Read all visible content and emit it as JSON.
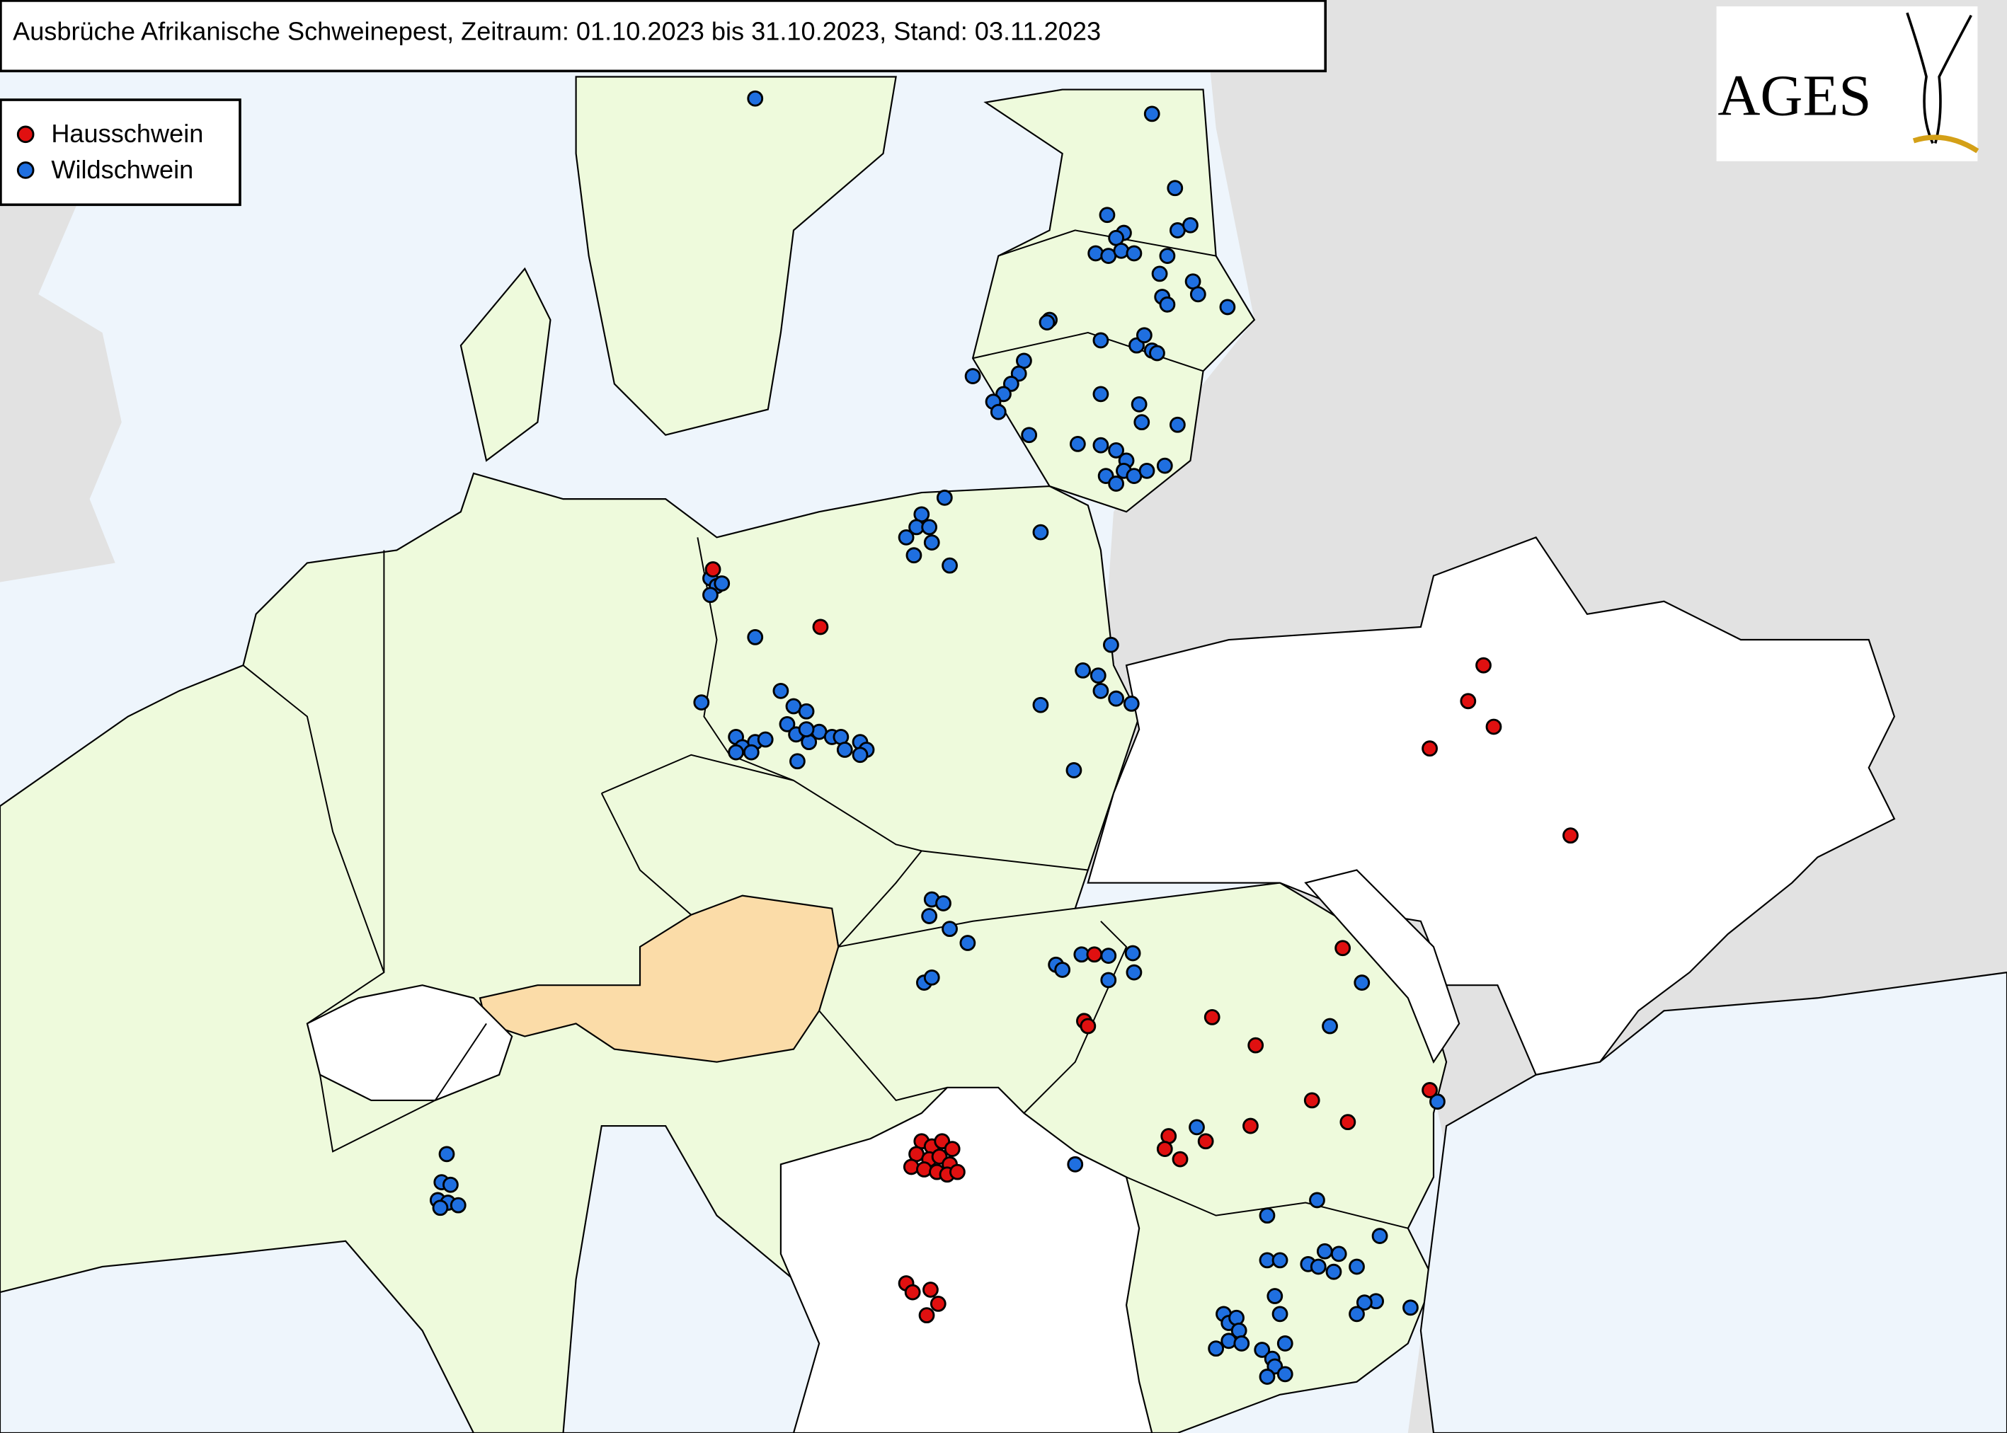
{
  "header": {
    "title": "Ausbrüche Afrikanische Schweinepest, Zeitraum: 01.10.2023 bis 31.10.2023, Stand: 03.11.2023"
  },
  "legend": {
    "items": [
      "Hausschwein",
      "Wildschwein"
    ]
  },
  "logo": {
    "text": "AGES"
  }
}
